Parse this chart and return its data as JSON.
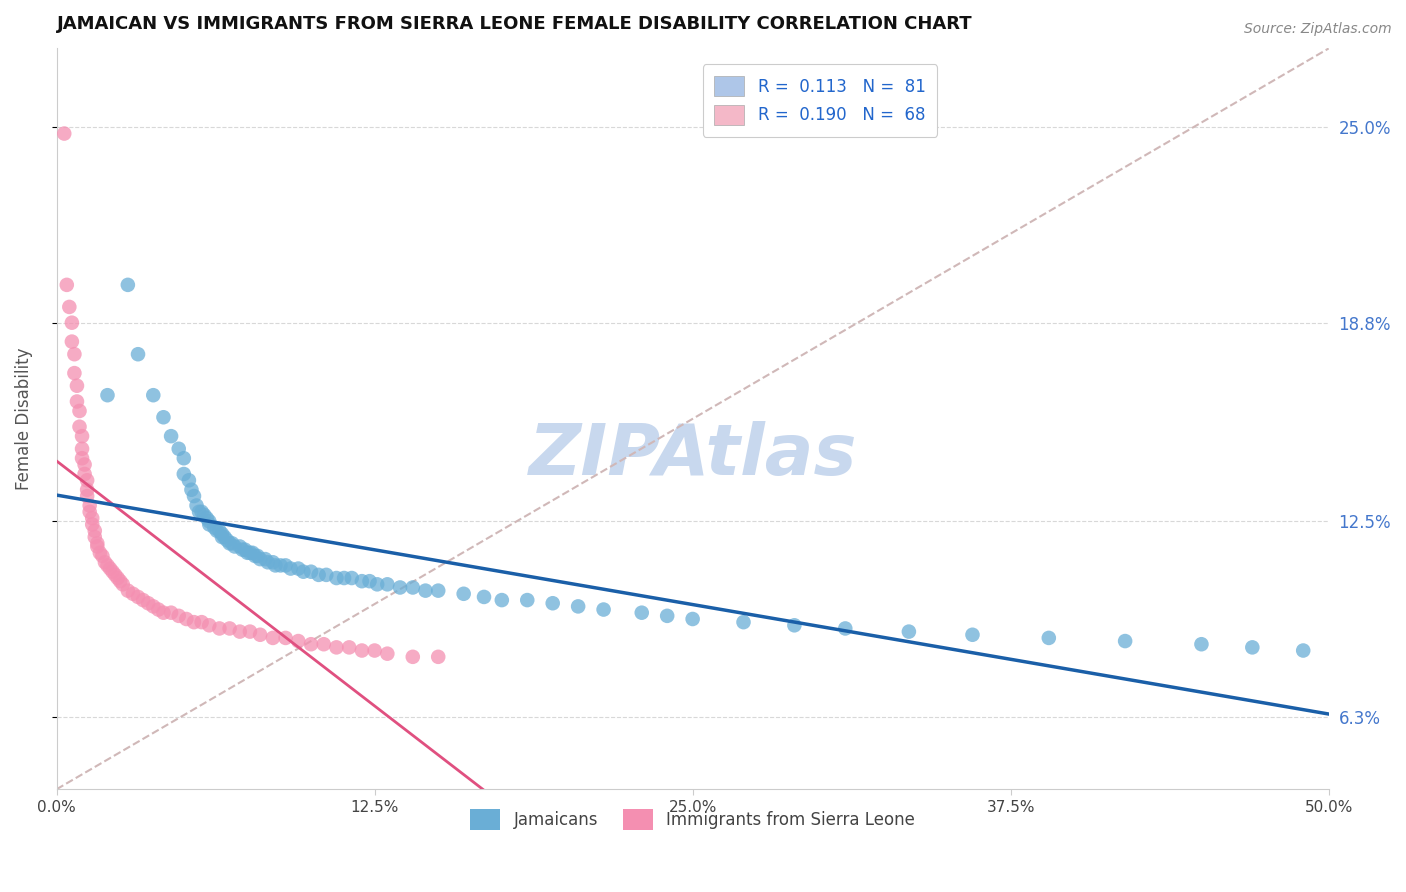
{
  "title": "JAMAICAN VS IMMIGRANTS FROM SIERRA LEONE FEMALE DISABILITY CORRELATION CHART",
  "source": "Source: ZipAtlas.com",
  "ylabel": "Female Disability",
  "ytick_labels": [
    "6.3%",
    "12.5%",
    "18.8%",
    "25.0%"
  ],
  "ytick_values": [
    0.063,
    0.125,
    0.188,
    0.25
  ],
  "xtick_values": [
    0.0,
    0.125,
    0.25,
    0.375,
    0.5
  ],
  "xlim": [
    0.0,
    0.5
  ],
  "ylim": [
    0.04,
    0.275
  ],
  "legend_entries": [
    {
      "label": "R =  0.113   N =  81",
      "color": "#aec6e8"
    },
    {
      "label": "R =  0.190   N =  68",
      "color": "#f4b8c8"
    }
  ],
  "jamaicans_color": "#6aaed6",
  "sierra_leone_color": "#f48fb1",
  "trend_blue": "#1a5fa8",
  "trend_pink": "#e05080",
  "trend_dashed_color": "#d0b8b8",
  "watermark_color": "#c8d8ee",
  "jamaicans_x": [
    0.02,
    0.028,
    0.032,
    0.038,
    0.042,
    0.045,
    0.048,
    0.05,
    0.05,
    0.052,
    0.053,
    0.054,
    0.055,
    0.056,
    0.057,
    0.058,
    0.059,
    0.06,
    0.06,
    0.062,
    0.063,
    0.064,
    0.065,
    0.065,
    0.066,
    0.067,
    0.068,
    0.069,
    0.07,
    0.072,
    0.073,
    0.074,
    0.075,
    0.076,
    0.077,
    0.078,
    0.079,
    0.08,
    0.082,
    0.083,
    0.085,
    0.086,
    0.088,
    0.09,
    0.092,
    0.095,
    0.097,
    0.1,
    0.103,
    0.106,
    0.11,
    0.113,
    0.116,
    0.12,
    0.123,
    0.126,
    0.13,
    0.135,
    0.14,
    0.145,
    0.15,
    0.16,
    0.168,
    0.175,
    0.185,
    0.195,
    0.205,
    0.215,
    0.23,
    0.24,
    0.25,
    0.27,
    0.29,
    0.31,
    0.335,
    0.36,
    0.39,
    0.42,
    0.45,
    0.47,
    0.49
  ],
  "jamaicans_y": [
    0.165,
    0.2,
    0.178,
    0.165,
    0.158,
    0.152,
    0.148,
    0.145,
    0.14,
    0.138,
    0.135,
    0.133,
    0.13,
    0.128,
    0.128,
    0.127,
    0.126,
    0.125,
    0.124,
    0.123,
    0.122,
    0.122,
    0.121,
    0.12,
    0.12,
    0.119,
    0.118,
    0.118,
    0.117,
    0.117,
    0.116,
    0.116,
    0.115,
    0.115,
    0.115,
    0.114,
    0.114,
    0.113,
    0.113,
    0.112,
    0.112,
    0.111,
    0.111,
    0.111,
    0.11,
    0.11,
    0.109,
    0.109,
    0.108,
    0.108,
    0.107,
    0.107,
    0.107,
    0.106,
    0.106,
    0.105,
    0.105,
    0.104,
    0.104,
    0.103,
    0.103,
    0.102,
    0.101,
    0.1,
    0.1,
    0.099,
    0.098,
    0.097,
    0.096,
    0.095,
    0.094,
    0.093,
    0.092,
    0.091,
    0.09,
    0.089,
    0.088,
    0.087,
    0.086,
    0.085,
    0.084
  ],
  "sierra_leone_x": [
    0.003,
    0.004,
    0.005,
    0.006,
    0.006,
    0.007,
    0.007,
    0.008,
    0.008,
    0.009,
    0.009,
    0.01,
    0.01,
    0.01,
    0.011,
    0.011,
    0.012,
    0.012,
    0.012,
    0.013,
    0.013,
    0.014,
    0.014,
    0.015,
    0.015,
    0.016,
    0.016,
    0.017,
    0.018,
    0.019,
    0.02,
    0.021,
    0.022,
    0.023,
    0.024,
    0.025,
    0.026,
    0.028,
    0.03,
    0.032,
    0.034,
    0.036,
    0.038,
    0.04,
    0.042,
    0.045,
    0.048,
    0.051,
    0.054,
    0.057,
    0.06,
    0.064,
    0.068,
    0.072,
    0.076,
    0.08,
    0.085,
    0.09,
    0.095,
    0.1,
    0.105,
    0.11,
    0.115,
    0.12,
    0.125,
    0.13,
    0.14,
    0.15
  ],
  "sierra_leone_y": [
    0.248,
    0.2,
    0.193,
    0.188,
    0.182,
    0.178,
    0.172,
    0.168,
    0.163,
    0.16,
    0.155,
    0.152,
    0.148,
    0.145,
    0.143,
    0.14,
    0.138,
    0.135,
    0.133,
    0.13,
    0.128,
    0.126,
    0.124,
    0.122,
    0.12,
    0.118,
    0.117,
    0.115,
    0.114,
    0.112,
    0.111,
    0.11,
    0.109,
    0.108,
    0.107,
    0.106,
    0.105,
    0.103,
    0.102,
    0.101,
    0.1,
    0.099,
    0.098,
    0.097,
    0.096,
    0.096,
    0.095,
    0.094,
    0.093,
    0.093,
    0.092,
    0.091,
    0.091,
    0.09,
    0.09,
    0.089,
    0.088,
    0.088,
    0.087,
    0.086,
    0.086,
    0.085,
    0.085,
    0.084,
    0.084,
    0.083,
    0.082,
    0.082
  ]
}
